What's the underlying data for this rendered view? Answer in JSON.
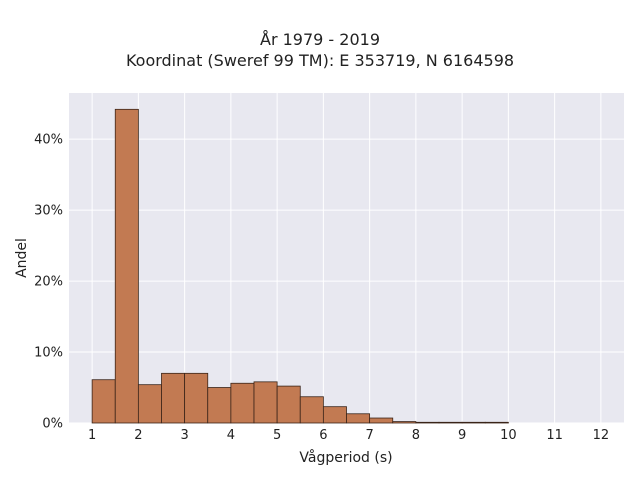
{
  "chart_data": {
    "type": "bar",
    "title": "År 1979 - 2019",
    "subtitle": "Koordinat (Sweref 99 TM): E 353719, N 6164598",
    "xlabel": "Vågperiod (s)",
    "ylabel": "Andel",
    "xlim": [
      0.5,
      12.5
    ],
    "ylim": [
      0,
      0.465
    ],
    "x_ticks": [
      1,
      2,
      3,
      4,
      5,
      6,
      7,
      8,
      9,
      10,
      11,
      12
    ],
    "y_ticks": [
      0,
      0.1,
      0.2,
      0.3,
      0.4
    ],
    "y_tick_labels": [
      "0%",
      "10%",
      "20%",
      "30%",
      "40%"
    ],
    "bin_width": 0.5,
    "bin_edges_start": [
      1.0,
      1.5,
      2.0,
      2.5,
      3.0,
      3.5,
      4.0,
      4.5,
      5.0,
      5.5,
      6.0,
      6.5,
      7.0,
      7.5,
      8.0,
      8.5,
      9.0,
      9.5
    ],
    "values": [
      0.061,
      0.442,
      0.054,
      0.07,
      0.07,
      0.05,
      0.056,
      0.058,
      0.052,
      0.037,
      0.023,
      0.013,
      0.007,
      0.002,
      0.001,
      0.001,
      0.001,
      0.001
    ],
    "grid": true,
    "bar_color": "#c27a52",
    "bar_edge_color": "#3a2418",
    "plot_background": "#e8e8f0",
    "grid_color": "#ffffff"
  }
}
